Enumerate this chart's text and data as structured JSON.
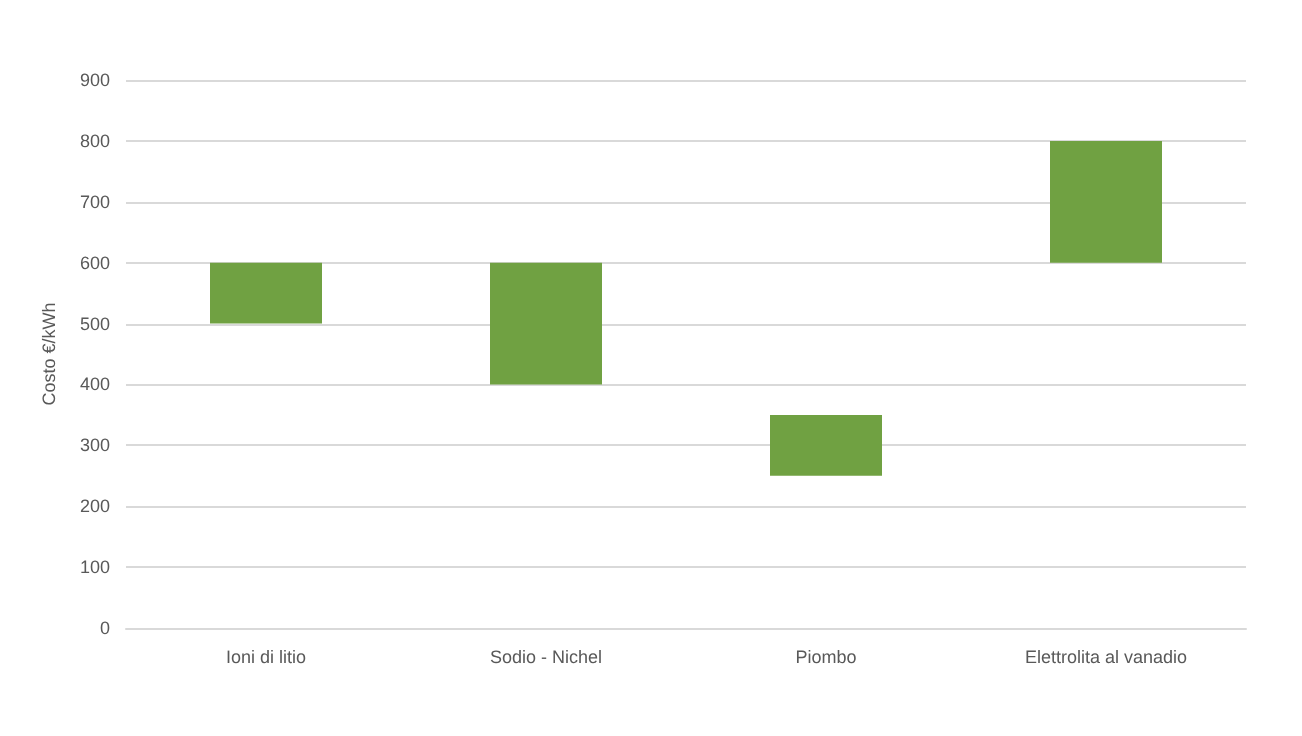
{
  "chart_data": {
    "type": "bar",
    "ylabel": "Costo €/kWh",
    "categories": [
      "Ioni di litio",
      "Sodio - Nichel",
      "Piombo",
      "Elettrolita al vanadio"
    ],
    "base": [
      500,
      400,
      250,
      600
    ],
    "values": [
      100,
      200,
      100,
      200
    ],
    "color": "#70a142",
    "ylim": [
      0,
      900
    ],
    "yticks": [
      0,
      100,
      200,
      300,
      400,
      500,
      600,
      700,
      800,
      900
    ],
    "grid": "y"
  }
}
